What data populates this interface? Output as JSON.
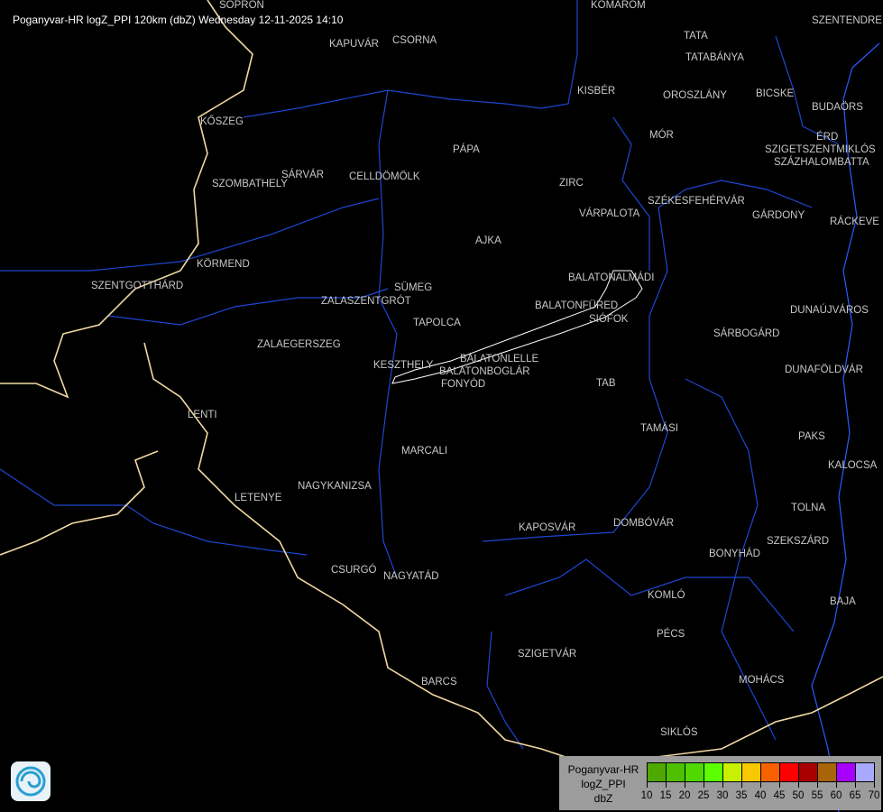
{
  "title": "Poganyvar-HR logZ_PPI 120km (dbZ) Wednesday 12-11-2025 14:10",
  "cities": [
    "SOPRON",
    "KOMÁROM",
    "SZENTENDRE",
    "KAPUVÁR",
    "CSORNA",
    "TATA",
    "TATABÁNYA",
    "KISBÉR",
    "OROSZLÁNY",
    "BICSKE",
    "KŐSZEG",
    "BUDAÖRS",
    "MÓR",
    "ÉRD",
    "SZIGETSZENTMIKLÓS",
    "PÁPA",
    "SZÁZHALOMBATTA",
    "SÁRVÁR",
    "SZOMBATHELY",
    "CELLDÖMÖLK",
    "ZIRC",
    "VÁRPALOTA",
    "SZÉKESFEHÉRVÁR",
    "GÁRDONY",
    "RÁCKEVE",
    "AJKA",
    "KÖRMEND",
    "SZENTGOTTHÁRD",
    "BALATONALMÁDI",
    "SÜMEG",
    "ZALASZENTGRÓT",
    "BALATONFÜRED",
    "SIÓFOK",
    "DUNAÚJVÁROS",
    "TAPOLCA",
    "ZALAEGERSZEG",
    "SÁRBOGÁRD",
    "BALATONLELLE",
    "KESZTHELY",
    "BALATONBOGLÁR",
    "FONYÓD",
    "DUNAFÖLDVÁR",
    "TAB",
    "LENTI",
    "TAMÁSI",
    "PAKS",
    "MARCALI",
    "KALOCSA",
    "NAGYKANIZSA",
    "LETENYE",
    "TOLNA",
    "KAPOSVÁR",
    "DOMBÓVÁR",
    "SZEKSZÁRD",
    "BONYHÁD",
    "CSURGÓ",
    "NAGYATÁD",
    "KOMLÓ",
    "BAJA",
    "PÉCS",
    "SZIGETVÁR",
    "MOHÁCS",
    "BARCS",
    "SIKLÓS"
  ],
  "legend": {
    "line1": "Poganyvar-HR",
    "line2": "logZ_PPI",
    "line3": "dbZ",
    "colors": [
      "#4fa800",
      "#4ec000",
      "#50d800",
      "#5cff00",
      "#c8f000",
      "#f8c800",
      "#f86000",
      "#ff0000",
      "#a80000",
      "#a86408",
      "#a800ff",
      "#a8a8ff"
    ],
    "ticks": [
      "10",
      "15",
      "20",
      "25",
      "30",
      "35",
      "40",
      "45",
      "50",
      "55",
      "60",
      "65",
      "70"
    ]
  },
  "colors": {
    "river": "#2a5cff",
    "border": "#f0d8a0",
    "county": "#1e46d0",
    "lake": "#ffffff"
  },
  "logo_icon": "weather-service-logo-icon"
}
